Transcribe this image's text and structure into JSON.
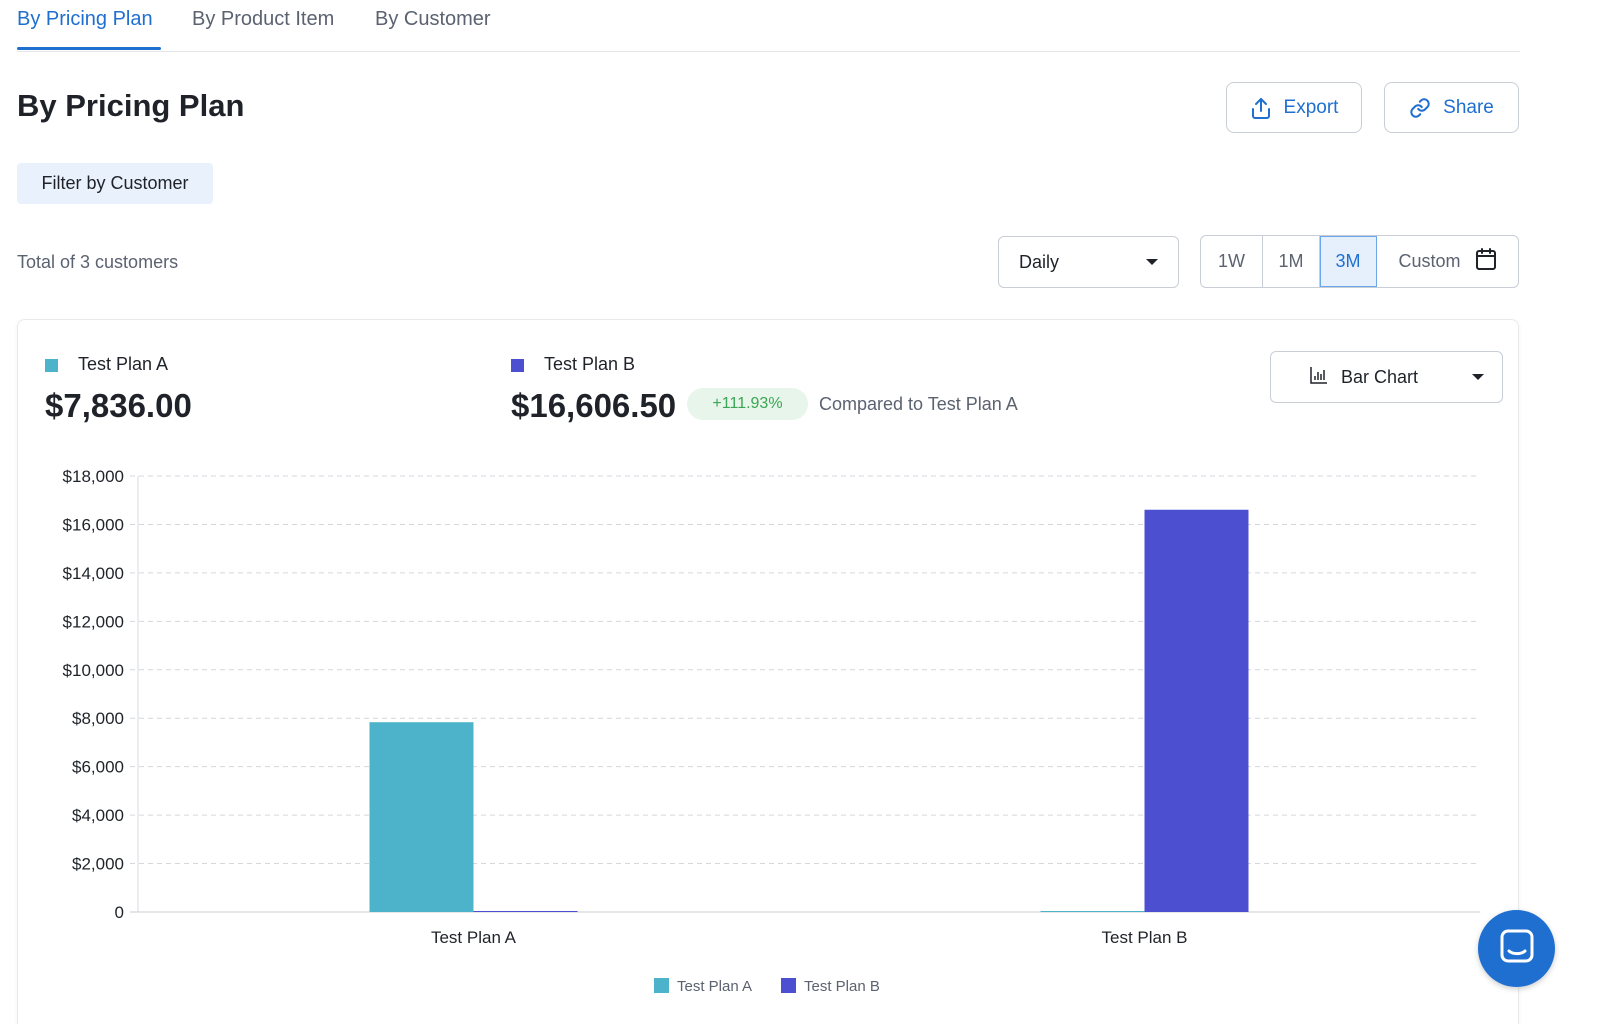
{
  "tabs": [
    {
      "label": "By Pricing Plan",
      "active": true
    },
    {
      "label": "By Product Item",
      "active": false
    },
    {
      "label": "By Customer",
      "active": false
    }
  ],
  "page": {
    "title": "By Pricing Plan"
  },
  "header_buttons": {
    "export_label": "Export",
    "share_label": "Share"
  },
  "filter": {
    "label": "Filter by Customer"
  },
  "summary": {
    "total_text": "Total of 3 customers"
  },
  "interval_select": {
    "value": "Daily"
  },
  "range": {
    "options": [
      "1W",
      "1M",
      "3M"
    ],
    "selected": "3M",
    "custom_label": "Custom"
  },
  "card": {
    "series_a": {
      "name": "Test Plan A",
      "value": "$7,836.00",
      "color": "#4db3cb"
    },
    "series_b": {
      "name": "Test Plan B",
      "value": "$16,606.50",
      "color": "#4c50d0",
      "change": "+111.93%",
      "compared_text": "Compared to Test Plan A"
    },
    "chart_type_select": {
      "value": "Bar Chart"
    }
  },
  "colors": {
    "accent": "#1f6fd0",
    "positive": "#3aa655"
  },
  "chart_data": {
    "type": "bar",
    "categories": [
      "Test Plan A",
      "Test Plan B"
    ],
    "series": [
      {
        "name": "Test Plan A",
        "values": [
          7836.0,
          0
        ]
      },
      {
        "name": "Test Plan B",
        "values": [
          0,
          16606.5
        ]
      }
    ],
    "ylim": [
      0,
      18000
    ],
    "yticks": [
      0,
      2000,
      4000,
      6000,
      8000,
      10000,
      12000,
      14000,
      16000,
      18000
    ],
    "ytick_labels": [
      "0",
      "$2,000",
      "$4,000",
      "$6,000",
      "$8,000",
      "$10,000",
      "$12,000",
      "$14,000",
      "$16,000",
      "$18,000"
    ],
    "grid": true,
    "legend_position": "bottom-center"
  }
}
